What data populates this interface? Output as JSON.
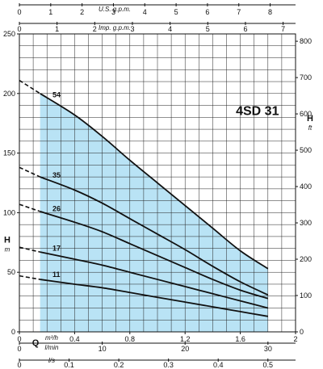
{
  "chart_data": {
    "type": "line",
    "title": "4SD 31",
    "x": {
      "label": "Q",
      "unit": "m³/h",
      "range": [
        0,
        2
      ],
      "ticks": [
        0,
        0.4,
        0.8,
        1.2,
        1.6,
        2
      ],
      "tick_labels": [
        "0",
        "0.4",
        "0.8",
        "1.2",
        "1.6",
        "2"
      ],
      "grid_step": 0.1
    },
    "x_secondary_axes": [
      {
        "unit": "l/min",
        "range": [
          0,
          33.33
        ],
        "ticks": [
          0,
          10,
          20,
          30
        ],
        "tick_labels": [
          "0",
          "10",
          "20",
          "30"
        ],
        "position": "bottom"
      },
      {
        "unit": "l/s",
        "range": [
          0,
          0.5556
        ],
        "ticks": [
          0,
          0.1,
          0.2,
          0.3,
          0.4,
          0.5
        ],
        "tick_labels": [
          "0",
          "0.1",
          "0.2",
          "0.3",
          "0.4",
          "0.5"
        ],
        "position": "bottom"
      },
      {
        "unit": "U.S. g.p.m.",
        "range": [
          0,
          8.81
        ],
        "ticks": [
          0,
          1,
          2,
          3,
          4,
          5,
          6,
          7,
          8
        ],
        "tick_labels": [
          "0",
          "1",
          "2",
          "3",
          "4",
          "5",
          "6",
          "7",
          "8"
        ],
        "position": "top"
      },
      {
        "unit": "Imp. g.p.m.",
        "range": [
          0,
          7.33
        ],
        "ticks": [
          0,
          1,
          2,
          3,
          4,
          5,
          6,
          7
        ],
        "tick_labels": [
          "0",
          "1",
          "2",
          "3",
          "4",
          "5",
          "6",
          "7"
        ],
        "position": "top"
      }
    ],
    "y": {
      "label": "H",
      "unit": "m",
      "range": [
        0,
        250
      ],
      "ticks": [
        0,
        50,
        100,
        150,
        200,
        250
      ],
      "tick_labels": [
        "0",
        "50",
        "100",
        "150",
        "200",
        "250"
      ],
      "grid_step": 10
    },
    "y_secondary": {
      "label": "H",
      "unit": "ft",
      "range": [
        0,
        820.2
      ],
      "ticks": [
        0,
        100,
        200,
        300,
        400,
        500,
        600,
        700,
        800
      ],
      "tick_labels": [
        "0",
        "100",
        "200",
        "300",
        "400",
        "500",
        "600",
        "700",
        "800"
      ]
    },
    "operating_range": [
      0.15,
      1.8
    ],
    "shaded_envelope_color": "#b9e3f5",
    "curve_color": "#111111",
    "series": [
      {
        "name": "54",
        "x": [
          0,
          0.15,
          0.4,
          0.6,
          0.8,
          1.0,
          1.2,
          1.4,
          1.6,
          1.8
        ],
        "values": [
          211,
          200,
          182,
          164,
          144,
          125,
          106,
          87,
          68,
          53
        ]
      },
      {
        "name": "35",
        "x": [
          0,
          0.15,
          0.4,
          0.6,
          0.8,
          1.0,
          1.2,
          1.4,
          1.6,
          1.8
        ],
        "values": [
          138,
          130,
          119,
          108,
          95,
          82,
          69,
          55,
          42,
          31
        ]
      },
      {
        "name": "26",
        "x": [
          0,
          0.15,
          0.4,
          0.6,
          0.8,
          1.0,
          1.2,
          1.4,
          1.6,
          1.8
        ],
        "values": [
          107,
          101,
          92,
          84,
          74,
          64,
          54,
          44,
          35,
          28
        ]
      },
      {
        "name": "17",
        "x": [
          0,
          0.15,
          0.4,
          0.6,
          0.8,
          1.0,
          1.2,
          1.4,
          1.6,
          1.8
        ],
        "values": [
          71,
          67,
          61,
          56,
          50,
          44,
          38,
          32,
          26,
          20
        ]
      },
      {
        "name": "11",
        "x": [
          0,
          0.15,
          0.4,
          0.6,
          0.8,
          1.0,
          1.2,
          1.4,
          1.6,
          1.8
        ],
        "values": [
          47,
          44,
          40,
          37,
          33,
          29,
          25,
          21,
          17,
          13
        ]
      }
    ]
  }
}
